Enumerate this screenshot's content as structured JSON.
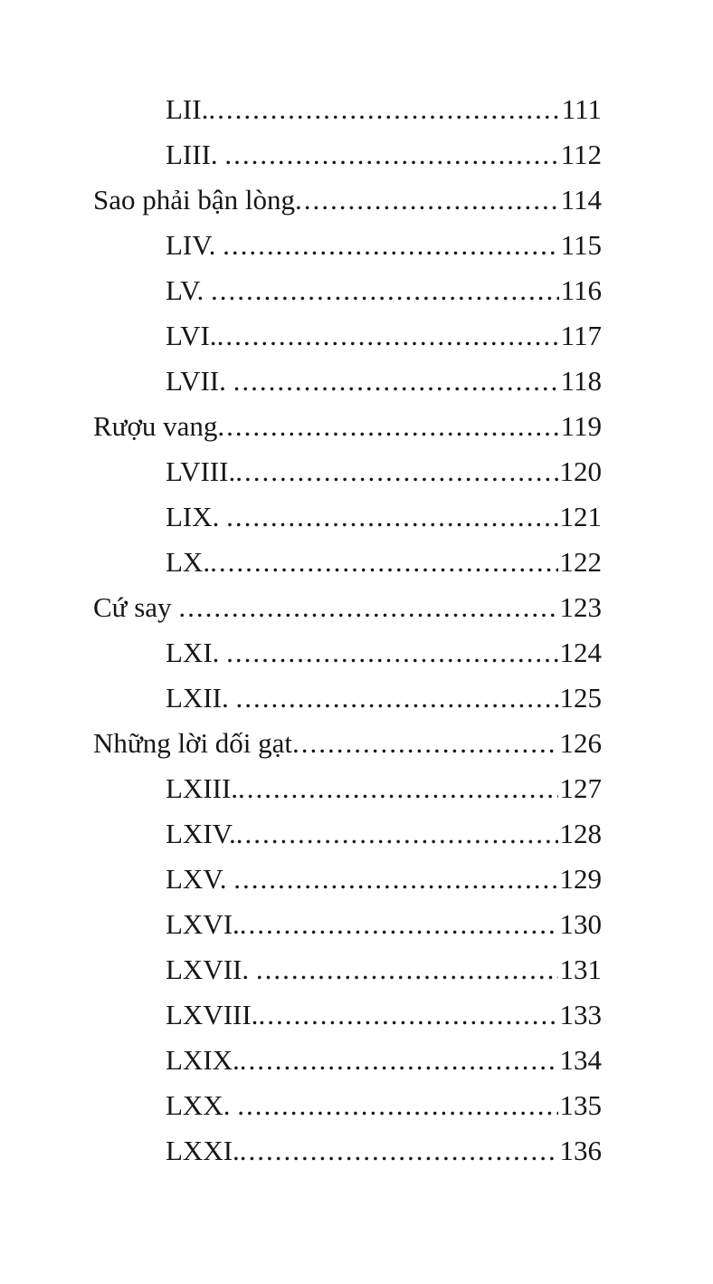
{
  "page": {
    "background_color": "#ffffff",
    "text_color": "#161616"
  },
  "toc": {
    "entries": [
      {
        "label": "LII.",
        "page": "111",
        "level": 2
      },
      {
        "label": "LIII. ",
        "page": "112",
        "level": 2
      },
      {
        "label": "Sao phải bận lòng",
        "page": "114",
        "level": 1
      },
      {
        "label": "LIV. ",
        "page": "115",
        "level": 2
      },
      {
        "label": "LV. ",
        "page": "116",
        "level": 2
      },
      {
        "label": "LVI.",
        "page": "117",
        "level": 2
      },
      {
        "label": "LVII. ",
        "page": "118",
        "level": 2
      },
      {
        "label": "Rượu vang",
        "page": "119",
        "level": 1
      },
      {
        "label": "LVIII.",
        "page": "120",
        "level": 2
      },
      {
        "label": "LIX. ",
        "page": "121",
        "level": 2
      },
      {
        "label": "LX.",
        "page": "122",
        "level": 2
      },
      {
        "label": "Cứ say ",
        "page": "123",
        "level": 1
      },
      {
        "label": "LXI. ",
        "page": "124",
        "level": 2
      },
      {
        "label": "LXII. ",
        "page": "125",
        "level": 2
      },
      {
        "label": "Những lời dối gạt",
        "page": "126",
        "level": 1
      },
      {
        "label": "LXIII.",
        "page": "127",
        "level": 2
      },
      {
        "label": "LXIV.",
        "page": "128",
        "level": 2
      },
      {
        "label": "LXV. ",
        "page": "129",
        "level": 2
      },
      {
        "label": "LXVI.",
        "page": "130",
        "level": 2
      },
      {
        "label": "LXVII. ",
        "page": "131",
        "level": 2
      },
      {
        "label": "LXVIII.",
        "page": "133",
        "level": 2
      },
      {
        "label": "LXIX.",
        "page": "134",
        "level": 2
      },
      {
        "label": "LXX. ",
        "page": "135",
        "level": 2
      },
      {
        "label": "LXXI.",
        "page": "136",
        "level": 2
      }
    ]
  }
}
